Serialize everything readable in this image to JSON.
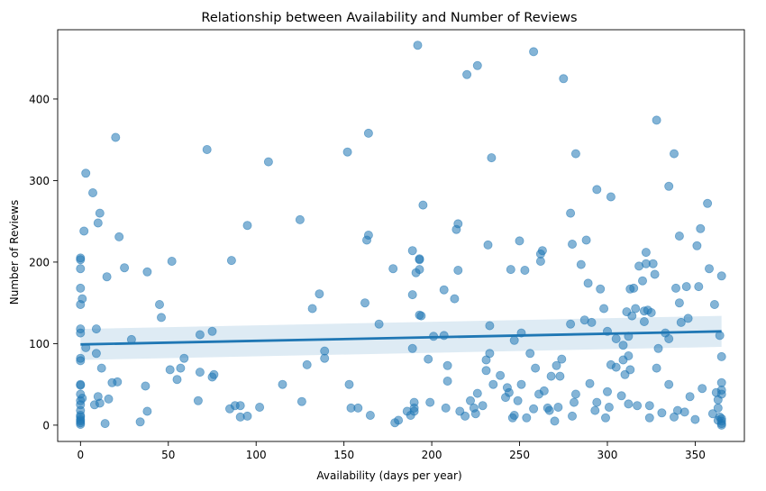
{
  "chart_data": {
    "type": "scatter",
    "title": "Relationship between Availability and Number of Reviews",
    "xlabel": "Availability (days per year)",
    "ylabel": "Number of Reviews",
    "xlim": [
      -13,
      378
    ],
    "ylim": [
      -20,
      485
    ],
    "xticks": [
      0,
      50,
      100,
      150,
      200,
      250,
      300,
      350
    ],
    "yticks": [
      0,
      100,
      200,
      300,
      400
    ],
    "grid": false,
    "colors": {
      "points": "#1f77b4",
      "line": "#1f77b4",
      "band": "#1f77b4"
    },
    "regression": {
      "x": [
        0,
        365
      ],
      "y": [
        99,
        115
      ],
      "ci_lower": [
        80,
        96
      ],
      "ci_upper": [
        118,
        134
      ]
    },
    "points": [
      [
        0,
        205
      ],
      [
        0,
        203
      ],
      [
        0,
        192
      ],
      [
        0,
        168
      ],
      [
        0,
        148
      ],
      [
        0,
        118
      ],
      [
        0,
        113
      ],
      [
        0,
        82
      ],
      [
        0,
        79
      ],
      [
        0,
        50
      ],
      [
        0,
        49
      ],
      [
        0,
        38
      ],
      [
        0,
        30
      ],
      [
        0,
        25
      ],
      [
        0,
        18
      ],
      [
        0,
        12
      ],
      [
        0,
        10
      ],
      [
        0,
        7
      ],
      [
        0,
        5
      ],
      [
        0,
        3
      ],
      [
        0,
        1
      ],
      [
        1,
        155
      ],
      [
        1,
        33
      ],
      [
        2,
        238
      ],
      [
        3,
        309
      ],
      [
        3,
        95
      ],
      [
        7,
        285
      ],
      [
        8,
        25
      ],
      [
        9,
        118
      ],
      [
        9,
        88
      ],
      [
        10,
        248
      ],
      [
        10,
        35
      ],
      [
        11,
        260
      ],
      [
        11,
        27
      ],
      [
        12,
        70
      ],
      [
        14,
        2
      ],
      [
        15,
        182
      ],
      [
        16,
        32
      ],
      [
        18,
        52
      ],
      [
        20,
        353
      ],
      [
        21,
        53
      ],
      [
        22,
        231
      ],
      [
        25,
        193
      ],
      [
        29,
        105
      ],
      [
        34,
        4
      ],
      [
        37,
        48
      ],
      [
        38,
        17
      ],
      [
        38,
        188
      ],
      [
        45,
        148
      ],
      [
        46,
        132
      ],
      [
        51,
        68
      ],
      [
        52,
        201
      ],
      [
        55,
        56
      ],
      [
        57,
        70
      ],
      [
        59,
        82
      ],
      [
        67,
        30
      ],
      [
        68,
        65
      ],
      [
        68,
        111
      ],
      [
        72,
        338
      ],
      [
        75,
        115
      ],
      [
        75,
        59
      ],
      [
        76,
        62
      ],
      [
        85,
        20
      ],
      [
        86,
        202
      ],
      [
        88,
        24
      ],
      [
        91,
        24
      ],
      [
        91,
        10
      ],
      [
        95,
        245
      ],
      [
        95,
        11
      ],
      [
        102,
        22
      ],
      [
        107,
        323
      ],
      [
        115,
        50
      ],
      [
        125,
        252
      ],
      [
        126,
        29
      ],
      [
        129,
        74
      ],
      [
        132,
        143
      ],
      [
        136,
        161
      ],
      [
        139,
        91
      ],
      [
        139,
        82
      ],
      [
        152,
        335
      ],
      [
        153,
        50
      ],
      [
        154,
        21
      ],
      [
        158,
        21
      ],
      [
        162,
        150
      ],
      [
        163,
        227
      ],
      [
        164,
        233
      ],
      [
        164,
        358
      ],
      [
        165,
        12
      ],
      [
        170,
        124
      ],
      [
        178,
        192
      ],
      [
        179,
        3
      ],
      [
        181,
        6
      ],
      [
        186,
        17
      ],
      [
        188,
        12
      ],
      [
        189,
        214
      ],
      [
        189,
        160
      ],
      [
        189,
        94
      ],
      [
        190,
        28
      ],
      [
        190,
        21
      ],
      [
        190,
        17
      ],
      [
        191,
        187
      ],
      [
        192,
        466
      ],
      [
        193,
        191
      ],
      [
        193,
        204
      ],
      [
        193,
        203
      ],
      [
        193,
        135
      ],
      [
        194,
        134
      ],
      [
        195,
        270
      ],
      [
        198,
        81
      ],
      [
        199,
        28
      ],
      [
        201,
        109
      ],
      [
        207,
        110
      ],
      [
        207,
        166
      ],
      [
        208,
        21
      ],
      [
        209,
        54
      ],
      [
        209,
        73
      ],
      [
        213,
        155
      ],
      [
        214,
        240
      ],
      [
        215,
        247
      ],
      [
        215,
        190
      ],
      [
        216,
        17
      ],
      [
        219,
        11
      ],
      [
        220,
        430
      ],
      [
        222,
        30
      ],
      [
        224,
        21
      ],
      [
        225,
        14
      ],
      [
        226,
        39
      ],
      [
        226,
        441
      ],
      [
        229,
        24
      ],
      [
        231,
        80
      ],
      [
        231,
        67
      ],
      [
        232,
        221
      ],
      [
        233,
        122
      ],
      [
        233,
        88
      ],
      [
        234,
        328
      ],
      [
        235,
        50
      ],
      [
        239,
        61
      ],
      [
        242,
        34
      ],
      [
        243,
        46
      ],
      [
        244,
        40
      ],
      [
        245,
        191
      ],
      [
        246,
        9
      ],
      [
        247,
        12
      ],
      [
        247,
        104
      ],
      [
        249,
        30
      ],
      [
        250,
        226
      ],
      [
        251,
        50
      ],
      [
        251,
        113
      ],
      [
        253,
        190
      ],
      [
        254,
        9
      ],
      [
        256,
        88
      ],
      [
        258,
        20
      ],
      [
        258,
        458
      ],
      [
        259,
        70
      ],
      [
        261,
        38
      ],
      [
        262,
        210
      ],
      [
        262,
        201
      ],
      [
        263,
        214
      ],
      [
        264,
        42
      ],
      [
        266,
        21
      ],
      [
        267,
        18
      ],
      [
        268,
        60
      ],
      [
        270,
        5
      ],
      [
        271,
        73
      ],
      [
        272,
        22
      ],
      [
        273,
        60
      ],
      [
        274,
        81
      ],
      [
        275,
        425
      ],
      [
        279,
        260
      ],
      [
        279,
        124
      ],
      [
        280,
        222
      ],
      [
        280,
        11
      ],
      [
        281,
        28
      ],
      [
        282,
        38
      ],
      [
        282,
        333
      ],
      [
        285,
        197
      ],
      [
        287,
        129
      ],
      [
        288,
        227
      ],
      [
        289,
        174
      ],
      [
        290,
        51
      ],
      [
        291,
        126
      ],
      [
        293,
        18
      ],
      [
        294,
        28
      ],
      [
        294,
        289
      ],
      [
        296,
        167
      ],
      [
        298,
        143
      ],
      [
        299,
        9
      ],
      [
        300,
        41
      ],
      [
        300,
        115
      ],
      [
        301,
        22
      ],
      [
        302,
        280
      ],
      [
        302,
        74
      ],
      [
        305,
        106
      ],
      [
        305,
        71
      ],
      [
        308,
        36
      ],
      [
        309,
        80
      ],
      [
        309,
        98
      ],
      [
        310,
        62
      ],
      [
        311,
        139
      ],
      [
        312,
        85
      ],
      [
        312,
        109
      ],
      [
        312,
        26
      ],
      [
        313,
        68
      ],
      [
        313,
        167
      ],
      [
        314,
        134
      ],
      [
        315,
        168
      ],
      [
        316,
        143
      ],
      [
        317,
        24
      ],
      [
        318,
        195
      ],
      [
        320,
        177
      ],
      [
        321,
        140
      ],
      [
        321,
        127
      ],
      [
        322,
        198
      ],
      [
        322,
        212
      ],
      [
        323,
        141
      ],
      [
        324,
        24
      ],
      [
        324,
        9
      ],
      [
        325,
        138
      ],
      [
        326,
        198
      ],
      [
        327,
        185
      ],
      [
        328,
        374
      ],
      [
        328,
        70
      ],
      [
        329,
        94
      ],
      [
        331,
        15
      ],
      [
        333,
        113
      ],
      [
        335,
        293
      ],
      [
        335,
        106
      ],
      [
        335,
        50
      ],
      [
        338,
        333
      ],
      [
        338,
        10
      ],
      [
        339,
        168
      ],
      [
        340,
        18
      ],
      [
        341,
        232
      ],
      [
        341,
        150
      ],
      [
        342,
        126
      ],
      [
        344,
        16
      ],
      [
        345,
        170
      ],
      [
        346,
        131
      ],
      [
        347,
        35
      ],
      [
        350,
        7
      ],
      [
        351,
        220
      ],
      [
        352,
        170
      ],
      [
        353,
        241
      ],
      [
        354,
        45
      ],
      [
        357,
        272
      ],
      [
        358,
        192
      ],
      [
        360,
        14
      ],
      [
        361,
        148
      ],
      [
        362,
        40
      ],
      [
        363,
        6
      ],
      [
        363,
        31
      ],
      [
        363,
        21
      ],
      [
        364,
        110
      ],
      [
        364,
        10
      ],
      [
        365,
        183
      ],
      [
        365,
        84
      ],
      [
        365,
        52
      ],
      [
        365,
        43
      ],
      [
        365,
        38
      ],
      [
        365,
        8
      ],
      [
        365,
        5
      ],
      [
        365,
        2
      ],
      [
        365,
        0
      ]
    ]
  }
}
